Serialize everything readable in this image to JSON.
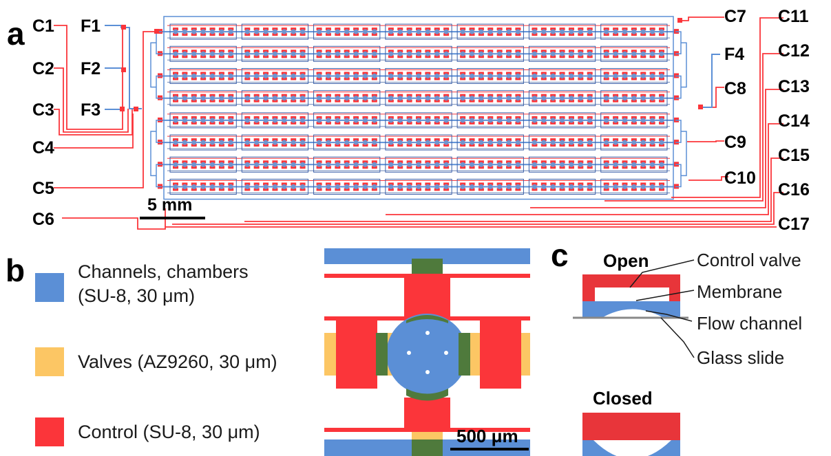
{
  "panels": {
    "a": "a",
    "b": "b",
    "c": "c"
  },
  "panel_a": {
    "left_labels": [
      "C1",
      "C2",
      "C3",
      "C4",
      "C5",
      "C6"
    ],
    "flow_labels_left": [
      "F1",
      "F2",
      "F3"
    ],
    "flow_label_right": "F4",
    "right_inner_labels": [
      "C7",
      "C8",
      "C9",
      "C10"
    ],
    "right_outer_labels": [
      "C11",
      "C12",
      "C13",
      "C14",
      "C15",
      "C16",
      "C17"
    ],
    "scale_bar": "5 mm",
    "array": {
      "rows": 8,
      "columns": 7
    }
  },
  "panel_b": {
    "legend": [
      {
        "line1": "Channels, chambers",
        "line2": "(SU-8, 30 μm)",
        "color": "#5b8fd6"
      },
      {
        "line1": "Valves (AZ9260, 30 μm)",
        "line2": "",
        "color": "#fcc664"
      },
      {
        "line1": "Control (SU-8, 30 μm)",
        "line2": "",
        "color": "#fb353a"
      }
    ],
    "scale_bar": "500 μm"
  },
  "panel_c": {
    "open_label": "Open",
    "closed_label": "Closed",
    "annotations": [
      "Control valve",
      "Membrane",
      "Flow channel",
      "Glass slide"
    ]
  },
  "colors": {
    "channel": "#5b8fd6",
    "valve": "#fcc664",
    "control": "#fb353a",
    "overlap": "#4f7a3c",
    "membrane_blue": "#5b8fd6"
  }
}
